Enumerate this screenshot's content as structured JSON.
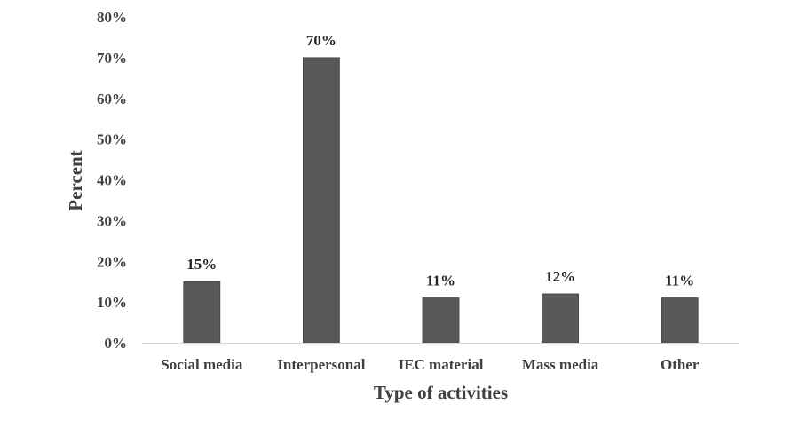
{
  "chart_data": {
    "type": "bar",
    "title": "",
    "xlabel": "Type of activities",
    "ylabel": "Percent",
    "categories": [
      "Social media",
      "Interpersonal",
      "IEC material",
      "Mass media",
      "Other"
    ],
    "values": [
      15,
      70,
      11,
      12,
      11
    ],
    "value_labels": [
      "15%",
      "70%",
      "11%",
      "12%",
      "11%"
    ],
    "ylim": [
      0,
      80
    ],
    "yticks": [
      0,
      10,
      20,
      30,
      40,
      50,
      60,
      70,
      80
    ],
    "ytick_labels": [
      "0%",
      "10%",
      "20%",
      "30%",
      "40%",
      "50%",
      "60%",
      "70%",
      "80%"
    ],
    "grid": false,
    "legend": "none",
    "bar_color": "#595959"
  }
}
